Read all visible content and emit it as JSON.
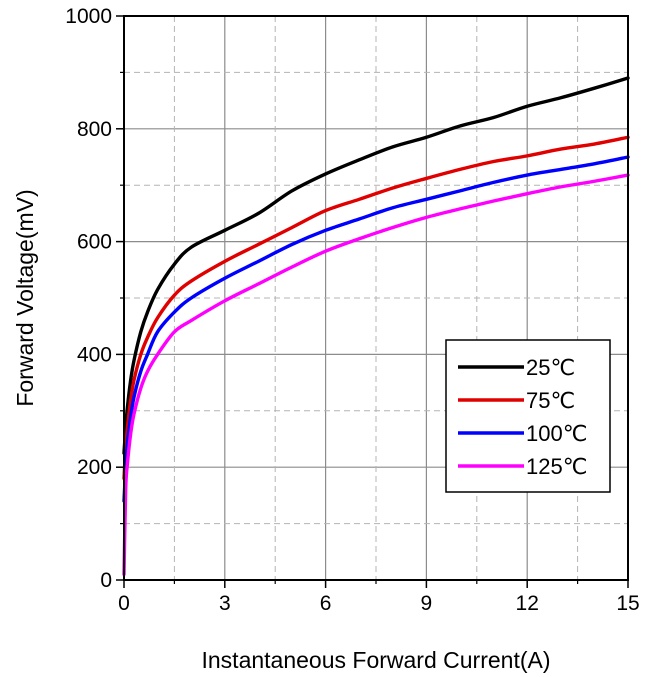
{
  "chart_data": {
    "type": "line",
    "title": "",
    "xlabel": "Instantaneous Forward Current(A)",
    "ylabel": "Forward Voltage(mV)",
    "xlim": [
      0,
      15
    ],
    "ylim": [
      0,
      1000
    ],
    "xticks": [
      0,
      3,
      6,
      9,
      12,
      15
    ],
    "yticks": [
      0,
      200,
      400,
      600,
      800,
      1000
    ],
    "grid": true,
    "legend_position": "lower-right",
    "series": [
      {
        "name": "25℃",
        "color": "#000000",
        "x": [
          0,
          0.05,
          0.1,
          0.2,
          0.3,
          0.5,
          0.7,
          1,
          1.5,
          2,
          3,
          4,
          5,
          6,
          7,
          8,
          9,
          10,
          11,
          12,
          13,
          14,
          15
        ],
        "y": [
          225,
          270,
          305,
          355,
          390,
          440,
          475,
          515,
          560,
          590,
          620,
          650,
          690,
          720,
          745,
          768,
          785,
          805,
          820,
          840,
          855,
          872,
          890
        ]
      },
      {
        "name": "75℃",
        "color": "#e00000",
        "x": [
          0,
          0.05,
          0.1,
          0.2,
          0.3,
          0.5,
          0.7,
          1,
          1.5,
          2,
          3,
          4,
          5,
          6,
          7,
          8,
          9,
          10,
          11,
          12,
          13,
          14,
          15
        ],
        "y": [
          180,
          235,
          270,
          320,
          355,
          400,
          430,
          465,
          505,
          530,
          565,
          595,
          625,
          655,
          675,
          695,
          712,
          728,
          742,
          752,
          764,
          773,
          785
        ]
      },
      {
        "name": "100℃",
        "color": "#0000ff",
        "x": [
          0,
          0.05,
          0.1,
          0.2,
          0.3,
          0.5,
          0.7,
          1,
          1.5,
          2,
          3,
          4,
          5,
          6,
          7,
          8,
          9,
          10,
          11,
          12,
          13,
          14,
          15
        ],
        "y": [
          140,
          200,
          240,
          290,
          325,
          370,
          400,
          440,
          475,
          500,
          535,
          565,
          595,
          620,
          640,
          660,
          675,
          690,
          705,
          718,
          728,
          738,
          750
        ]
      },
      {
        "name": "125℃",
        "color": "#ff00ff",
        "x": [
          0,
          0.05,
          0.1,
          0.2,
          0.3,
          0.5,
          0.7,
          1,
          1.5,
          2,
          3,
          4,
          5,
          6,
          7,
          8,
          9,
          10,
          11,
          12,
          13,
          14,
          15
        ],
        "y": [
          10,
          160,
          205,
          260,
          295,
          340,
          370,
          400,
          440,
          460,
          495,
          525,
          555,
          583,
          605,
          625,
          643,
          658,
          672,
          685,
          697,
          707,
          718
        ]
      }
    ]
  }
}
